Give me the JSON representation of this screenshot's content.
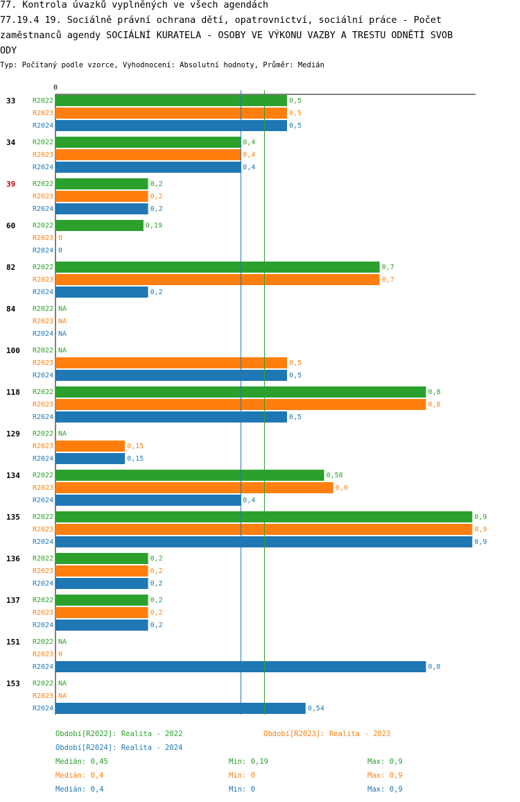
{
  "header": {
    "line1": "77. Kontrola úvazků vyplněných ve všech agendách",
    "line2": "77.19.4 19.  Sociálně právní ochrana dětí, opatrovnictví, sociální práce - Počet",
    "line3": "zaměstnanců agendy SOCIÁLNÍ KURATELA - OSOBY VE VÝKONU VAZBY A TRESTU ODNĚTÍ SVOB",
    "line4": "ODY",
    "subtitle": "Typ: Počítaný podle vzorce, Vyhodnocení: Absolutní hodnoty, Průměr: Medián"
  },
  "colors": {
    "R2022": "#2ca02c",
    "R2023": "#ff7f0e",
    "R2024": "#1f77b4",
    "highlight": "#cc0000"
  },
  "chart_data": {
    "type": "bar",
    "orientation": "horizontal",
    "xlim": [
      0,
      0.9
    ],
    "axis_zero_label": "0",
    "highlighted_category": "39",
    "series_names": [
      "R2022",
      "R2023",
      "R2024"
    ],
    "categories": [
      {
        "id": "33",
        "values": [
          0.5,
          0.5,
          0.5
        ],
        "labels": [
          "0,5",
          "0,5",
          "0,5"
        ]
      },
      {
        "id": "34",
        "values": [
          0.4,
          0.4,
          0.4
        ],
        "labels": [
          "0,4",
          "0,4",
          "0,4"
        ]
      },
      {
        "id": "39",
        "values": [
          0.2,
          0.2,
          0.2
        ],
        "labels": [
          "0,2",
          "0,2",
          "0,2"
        ]
      },
      {
        "id": "60",
        "values": [
          0.19,
          0,
          0
        ],
        "labels": [
          "0,19",
          "0",
          "0"
        ]
      },
      {
        "id": "82",
        "values": [
          0.7,
          0.7,
          0.2
        ],
        "labels": [
          "0,7",
          "0,7",
          "0,2"
        ]
      },
      {
        "id": "84",
        "values": [
          null,
          null,
          null
        ],
        "labels": [
          "NA",
          "NA",
          "NA"
        ]
      },
      {
        "id": "100",
        "values": [
          null,
          0.5,
          0.5
        ],
        "labels": [
          "NA",
          "0,5",
          "0,5"
        ]
      },
      {
        "id": "118",
        "values": [
          0.8,
          0.8,
          0.5
        ],
        "labels": [
          "0,8",
          "0,8",
          "0,5"
        ]
      },
      {
        "id": "129",
        "values": [
          null,
          0.15,
          0.15
        ],
        "labels": [
          "NA",
          "0,15",
          "0,15"
        ]
      },
      {
        "id": "134",
        "values": [
          0.58,
          0.6,
          0.4
        ],
        "labels": [
          "0,58",
          "0,6",
          "0,4"
        ]
      },
      {
        "id": "135",
        "values": [
          0.9,
          0.9,
          0.9
        ],
        "labels": [
          "0,9",
          "0,9",
          "0,9"
        ]
      },
      {
        "id": "136",
        "values": [
          0.2,
          0.2,
          0.2
        ],
        "labels": [
          "0,2",
          "0,2",
          "0,2"
        ]
      },
      {
        "id": "137",
        "values": [
          0.2,
          0.2,
          0.2
        ],
        "labels": [
          "0,2",
          "0,2",
          "0,2"
        ]
      },
      {
        "id": "151",
        "values": [
          null,
          0,
          0.8
        ],
        "labels": [
          "NA",
          "0",
          "0,8"
        ]
      },
      {
        "id": "153",
        "values": [
          null,
          null,
          0.54
        ],
        "labels": [
          "NA",
          "NA",
          "0,54"
        ]
      }
    ],
    "reference_lines": [
      {
        "series": "R2024",
        "value": 0.4
      },
      {
        "series": "R2022",
        "value": 0.45
      }
    ]
  },
  "legend": {
    "periods": [
      {
        "series": "R2022",
        "text": "Období[R2022]: Realita - 2022"
      },
      {
        "series": "R2023",
        "text": "Období[R2023]: Realita - 2023"
      },
      {
        "series": "R2024",
        "text": "Období[R2024]: Realita - 2024"
      }
    ],
    "stats": [
      {
        "series": "R2022",
        "median": "Medián: 0,45",
        "min": "Min: 0,19",
        "max": "Max: 0,9"
      },
      {
        "series": "R2023",
        "median": "Medián: 0,4",
        "min": "Min: 0",
        "max": "Max: 0,9"
      },
      {
        "series": "R2024",
        "median": "Medián: 0,4",
        "min": "Min: 0",
        "max": "Max: 0,9"
      }
    ]
  }
}
